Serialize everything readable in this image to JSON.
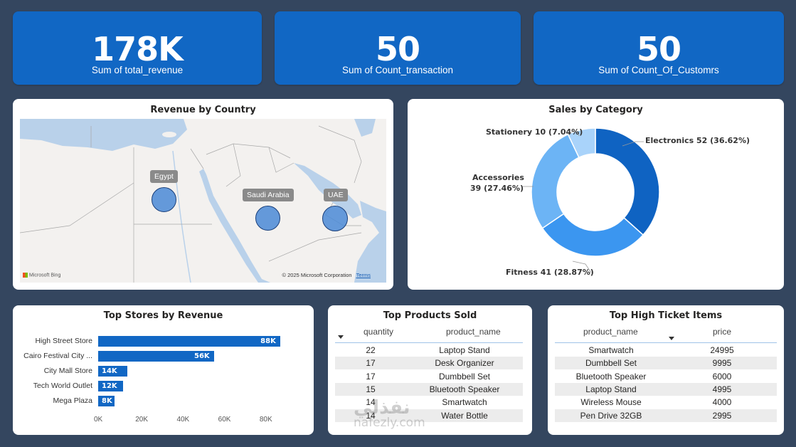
{
  "kpis": [
    {
      "value": "178K",
      "label": "Sum of total_revenue"
    },
    {
      "value": "50",
      "label": "Sum of Count_transaction"
    },
    {
      "value": "50",
      "label": "Sum of Count_Of_Customrs"
    }
  ],
  "map": {
    "title": "Revenue by Country",
    "countries": [
      "Egypt",
      "Saudi Arabia",
      "UAE"
    ],
    "attribution_left": "Microsoft Bing",
    "attribution_right": "© 2025 Microsoft Corporation",
    "terms": "Terms"
  },
  "category": {
    "title": "Sales by Category",
    "labels": {
      "electronics": "Electronics 52 (36.62%)",
      "fitness": "Fitness 41 (28.87%)",
      "accessories_1": "Accessories",
      "accessories_2": "39 (27.46%)",
      "stationery": "Stationery 10 (7.04%)"
    }
  },
  "stores": {
    "title": "Top Stores by Revenue",
    "names": [
      "High Street Store",
      "Cairo Festival City ...",
      "City Mall Store",
      "Tech World Outlet",
      "Mega Plaza"
    ],
    "value_labels": [
      "88K",
      "56K",
      "14K",
      "12K",
      "8K"
    ],
    "ticks": [
      "0K",
      "20K",
      "40K",
      "60K",
      "80K"
    ]
  },
  "products": {
    "title": "Top Products Sold",
    "col_quantity": "quantity",
    "col_product": "product_name",
    "rows": [
      {
        "q": "22",
        "p": "Laptop Stand"
      },
      {
        "q": "17",
        "p": "Desk Organizer"
      },
      {
        "q": "17",
        "p": "Dumbbell Set"
      },
      {
        "q": "15",
        "p": "Bluetooth Speaker"
      },
      {
        "q": "14",
        "p": "Smartwatch"
      },
      {
        "q": "14",
        "p": "Water Bottle"
      }
    ]
  },
  "tickets": {
    "title": "Top High Ticket Items",
    "col_product": "product_name",
    "col_price": "price",
    "rows": [
      {
        "p": "Smartwatch",
        "v": "24995"
      },
      {
        "p": "Dumbbell Set",
        "v": "9995"
      },
      {
        "p": "Bluetooth Speaker",
        "v": "6000"
      },
      {
        "p": "Laptop Stand",
        "v": "4995"
      },
      {
        "p": "Wireless Mouse",
        "v": "4000"
      },
      {
        "p": "Pen Drive 32GB",
        "v": "2995"
      }
    ]
  },
  "watermark": {
    "arabic": "نفذلي",
    "latin": "nafezly.com"
  },
  "colors": {
    "background": "#34465f",
    "kpi": "#1167c4",
    "donut": [
      "#0f63c2",
      "#3b96f0",
      "#6cb4f5",
      "#a9d3fa"
    ]
  },
  "chart_data": [
    {
      "type": "pie",
      "title": "Sales by Category",
      "categories": [
        "Electronics",
        "Fitness",
        "Accessories",
        "Stationery"
      ],
      "values": [
        52,
        41,
        39,
        10
      ],
      "percent": [
        36.62,
        28.87,
        27.46,
        7.04
      ]
    },
    {
      "type": "bar",
      "title": "Top Stores by Revenue",
      "orientation": "horizontal",
      "categories": [
        "High Street Store",
        "Cairo Festival City ...",
        "City Mall Store",
        "Tech World Outlet",
        "Mega Plaza"
      ],
      "values": [
        88,
        56,
        14,
        12,
        8
      ],
      "unit": "K",
      "xlim": [
        0,
        90
      ]
    }
  ]
}
